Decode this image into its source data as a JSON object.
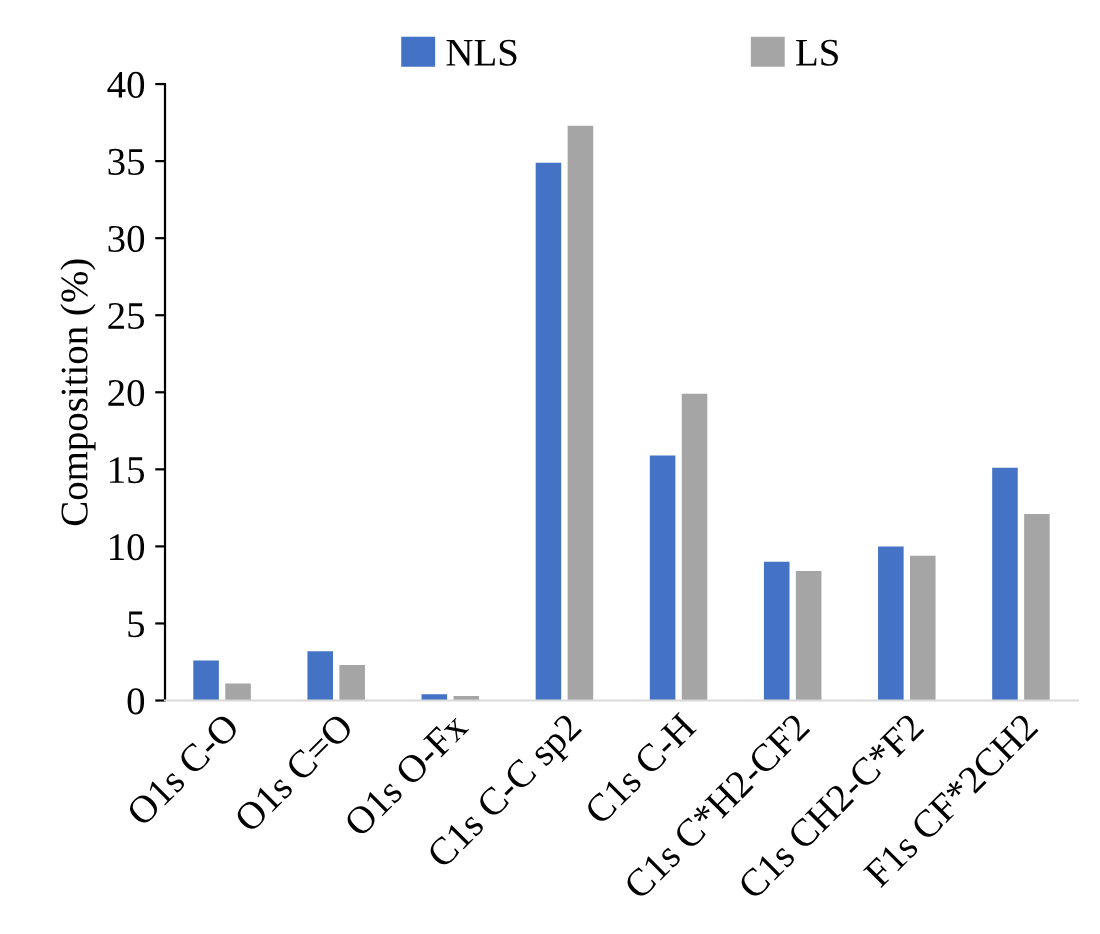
{
  "chart_data": {
    "type": "bar",
    "ylabel": "Composition (%)",
    "categories": [
      "O1s C-O",
      "O1s C=O",
      "O1s O-Fx",
      "C1s C-C sp2",
      "C1s C-H",
      "C1s C*H2-CF2",
      "C1s CH2-C*F2",
      "F1s CF*2CH2"
    ],
    "series": [
      {
        "name": "NLS",
        "color": "#4472c4",
        "values": [
          2.6,
          3.2,
          0.4,
          34.9,
          15.9,
          9.0,
          10.0,
          15.1
        ]
      },
      {
        "name": "LS",
        "color": "#a5a5a5",
        "values": [
          1.1,
          2.3,
          0.3,
          37.3,
          19.9,
          8.4,
          9.4,
          12.1
        ]
      }
    ],
    "ylim": [
      0,
      40
    ],
    "yticks": [
      0,
      5,
      10,
      15,
      20,
      25,
      30,
      35,
      40
    ],
    "grid": false,
    "legend": "top"
  }
}
